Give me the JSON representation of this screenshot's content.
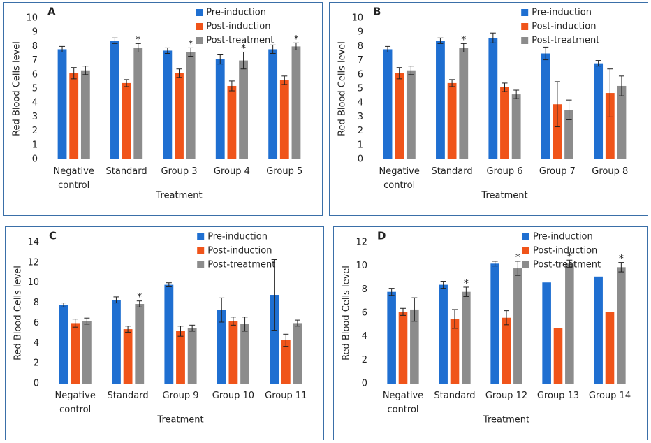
{
  "chart_data": [
    {
      "type": "bar",
      "label": "A",
      "ylabel": "Red Blood Cells level",
      "xlabel": "Treatment",
      "categories": [
        "Negative control",
        "Standard",
        "Group 3",
        "Group 4",
        "Group 5"
      ],
      "ylim": [
        0,
        10
      ],
      "yticks": [
        0,
        1,
        2,
        3,
        4,
        5,
        6,
        7,
        8,
        9,
        10
      ],
      "series": [
        {
          "name": "Pre-induction",
          "color": "#1f6fd1",
          "values": [
            7.8,
            8.4,
            7.7,
            7.1,
            7.8
          ],
          "errors": [
            0.2,
            0.2,
            0.2,
            0.35,
            0.3
          ]
        },
        {
          "name": "Post-induction",
          "color": "#f0541a",
          "values": [
            6.1,
            5.4,
            6.1,
            5.2,
            5.6
          ],
          "errors": [
            0.4,
            0.25,
            0.3,
            0.35,
            0.3
          ]
        },
        {
          "name": "Post-treatment",
          "color": "#8c8c8c",
          "values": [
            6.3,
            7.9,
            7.6,
            7.0,
            8.0
          ],
          "errors": [
            0.3,
            0.3,
            0.3,
            0.6,
            0.25
          ],
          "significance": [
            null,
            "*",
            "*",
            "*",
            "*"
          ]
        }
      ]
    },
    {
      "type": "bar",
      "label": "B",
      "ylabel": "Red Blood Cells level",
      "xlabel": "Treatment",
      "categories": [
        "Negative control",
        "Standard",
        "Group 6",
        "Group 7",
        "Group 8"
      ],
      "ylim": [
        0,
        10
      ],
      "yticks": [
        0,
        1,
        2,
        3,
        4,
        5,
        6,
        7,
        8,
        9,
        10
      ],
      "series": [
        {
          "name": "Pre-induction",
          "color": "#1f6fd1",
          "values": [
            7.8,
            8.4,
            8.6,
            7.5,
            6.8
          ],
          "errors": [
            0.2,
            0.2,
            0.35,
            0.45,
            0.2
          ]
        },
        {
          "name": "Post-induction",
          "color": "#f0541a",
          "values": [
            6.1,
            5.4,
            5.1,
            3.9,
            4.7
          ],
          "errors": [
            0.4,
            0.25,
            0.3,
            1.6,
            1.7
          ]
        },
        {
          "name": "Post-treatment",
          "color": "#8c8c8c",
          "values": [
            6.3,
            7.9,
            4.6,
            3.5,
            5.2
          ],
          "errors": [
            0.3,
            0.3,
            0.3,
            0.7,
            0.7
          ],
          "significance": [
            null,
            "*",
            null,
            null,
            null
          ]
        }
      ]
    },
    {
      "type": "bar",
      "label": "C",
      "ylabel": "Red Blood Cells level",
      "xlabel": "Treatment",
      "categories": [
        "Negative control",
        "Standard",
        "Group 9",
        "Group 10",
        "Group 11"
      ],
      "ylim": [
        0,
        14
      ],
      "yticks": [
        0,
        2,
        4,
        6,
        8,
        10,
        12,
        14
      ],
      "series": [
        {
          "name": "Pre-induction",
          "color": "#1f6fd1",
          "values": [
            7.8,
            8.3,
            9.8,
            7.3,
            8.8
          ],
          "errors": [
            0.2,
            0.3,
            0.2,
            1.2,
            3.5
          ]
        },
        {
          "name": "Post-induction",
          "color": "#f0541a",
          "values": [
            6.0,
            5.4,
            5.2,
            6.2,
            4.3
          ],
          "errors": [
            0.4,
            0.3,
            0.5,
            0.4,
            0.6
          ]
        },
        {
          "name": "Post-treatment",
          "color": "#8c8c8c",
          "values": [
            6.2,
            7.9,
            5.5,
            5.9,
            6.0
          ],
          "errors": [
            0.3,
            0.3,
            0.3,
            0.7,
            0.3
          ],
          "significance": [
            null,
            "*",
            null,
            null,
            null
          ]
        }
      ]
    },
    {
      "type": "bar",
      "label": "D",
      "ylabel": "Red Blood Cells level",
      "xlabel": "Treatment",
      "categories": [
        "Negative control",
        "Standard",
        "Group 12",
        "Group 13",
        "Group 14"
      ],
      "ylim": [
        0,
        12
      ],
      "yticks": [
        0,
        2,
        4,
        6,
        8,
        10,
        12
      ],
      "series": [
        {
          "name": "Pre-induction",
          "color": "#1f6fd1",
          "values": [
            7.8,
            8.4,
            10.2,
            8.6,
            9.1
          ],
          "errors": [
            0.3,
            0.3,
            0.2,
            null,
            null
          ]
        },
        {
          "name": "Post-induction",
          "color": "#f0541a",
          "values": [
            6.1,
            5.5,
            5.6,
            4.7,
            6.1
          ],
          "errors": [
            0.3,
            0.8,
            0.6,
            null,
            null
          ]
        },
        {
          "name": "Post-treatment",
          "color": "#8c8c8c",
          "values": [
            6.3,
            7.8,
            9.8,
            10.2,
            9.9
          ],
          "errors": [
            1.0,
            0.4,
            0.6,
            0.3,
            0.4
          ],
          "significance": [
            null,
            "*",
            "*",
            "*",
            "*"
          ]
        }
      ]
    }
  ]
}
